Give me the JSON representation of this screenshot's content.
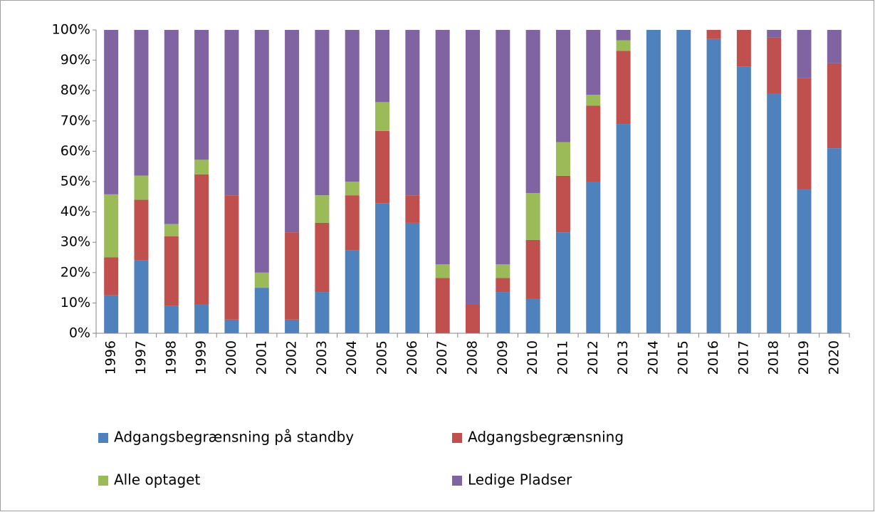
{
  "chart_data": {
    "type": "bar",
    "stacked": true,
    "categories": [
      "1996",
      "1997",
      "1998",
      "1999",
      "2000",
      "2001",
      "2002",
      "2003",
      "2004",
      "2005",
      "2006",
      "2007",
      "2008",
      "2009",
      "2010",
      "2011",
      "2012",
      "2013",
      "2014",
      "2015",
      "2016",
      "2017",
      "2018",
      "2019",
      "2020"
    ],
    "series": [
      {
        "name": "Adgangsbegrænsning på standby",
        "color": "#4f81bd",
        "values": [
          12.5,
          24,
          9,
          9.5,
          4.5,
          15,
          4.5,
          13.6,
          27.3,
          42.9,
          36.4,
          0,
          0,
          13.6,
          11.5,
          33.3,
          50,
          69,
          100,
          100,
          97,
          88,
          79,
          47.4,
          61
        ]
      },
      {
        "name": "Adgangsbegrænsning",
        "color": "#c0504d",
        "values": [
          12.5,
          20,
          23,
          42.9,
          41,
          0,
          28.8,
          22.8,
          18.2,
          23.8,
          9.1,
          18.2,
          9.5,
          4.6,
          19.3,
          18.6,
          25,
          24.1,
          0,
          0,
          3,
          12,
          18.5,
          36.8,
          28
        ]
      },
      {
        "name": "Alle optaget",
        "color": "#9bbb59",
        "values": [
          20.8,
          8,
          4,
          4.8,
          0,
          5,
          0,
          9.1,
          4.5,
          9.5,
          0,
          4.5,
          0,
          4.5,
          15.4,
          11.1,
          3.6,
          3.5,
          0,
          0,
          0,
          0,
          0,
          0,
          0
        ]
      },
      {
        "name": "Ledige Pladser",
        "color": "#8064a2",
        "values": [
          54.2,
          48,
          64,
          42.8,
          54.5,
          80,
          66.7,
          54.5,
          50,
          23.8,
          54.5,
          77.3,
          90.5,
          77.3,
          53.8,
          37,
          21.4,
          3.4,
          0,
          0,
          0,
          0,
          2.5,
          15.8,
          11
        ]
      }
    ],
    "ylim": [
      0,
      100
    ],
    "yticks": [
      {
        "value": 0,
        "label": "0%"
      },
      {
        "value": 10,
        "label": "10%"
      },
      {
        "value": 20,
        "label": "20%"
      },
      {
        "value": 30,
        "label": "30%"
      },
      {
        "value": 40,
        "label": "40%"
      },
      {
        "value": 50,
        "label": "50%"
      },
      {
        "value": 60,
        "label": "60%"
      },
      {
        "value": 70,
        "label": "70%"
      },
      {
        "value": 80,
        "label": "80%"
      },
      {
        "value": 90,
        "label": "90%"
      },
      {
        "value": 100,
        "label": "100%"
      }
    ],
    "grid": false
  }
}
